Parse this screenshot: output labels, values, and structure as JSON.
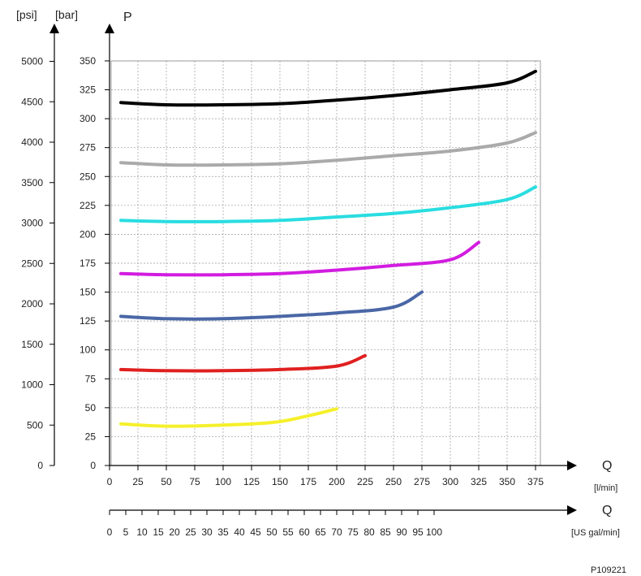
{
  "chart_data": {
    "type": "line",
    "title": "",
    "y_axis_label": "P",
    "y_units_left": "[psi]",
    "y_units_right": "[bar]",
    "x_axis_label": "Q",
    "x_units": "[l/min]",
    "x2_axis_label": "Q",
    "x2_units": "[US gal/min]",
    "reference_code": "P109221",
    "bar_ticks": [
      "0",
      "25",
      "50",
      "75",
      "100",
      "125",
      "150",
      "175",
      "200",
      "225",
      "250",
      "275",
      "300",
      "325",
      "350"
    ],
    "psi_ticks": [
      "0",
      "500",
      "1000",
      "1500",
      "2000",
      "2500",
      "3000",
      "3500",
      "4000",
      "4500",
      "5000"
    ],
    "lmin_ticks": [
      "0",
      "25",
      "50",
      "75",
      "100",
      "125",
      "150",
      "175",
      "200",
      "225",
      "250",
      "275",
      "300",
      "325",
      "350",
      "375"
    ],
    "gal_ticks": [
      "0",
      "5",
      "10",
      "15",
      "20",
      "25",
      "30",
      "35",
      "40",
      "45",
      "50",
      "55",
      "60",
      "65",
      "70",
      "75",
      "80",
      "85",
      "90",
      "95",
      "100"
    ],
    "ylim_bar": [
      0,
      350
    ],
    "grid": true,
    "series": [
      {
        "color": "#000000",
        "x": [
          10,
          50,
          100,
          150,
          200,
          250,
          300,
          350,
          375
        ],
        "y": [
          314,
          312,
          312,
          313,
          316,
          320,
          325,
          331,
          341
        ]
      },
      {
        "color": "#aaaaaa",
        "x": [
          10,
          50,
          100,
          150,
          200,
          250,
          300,
          350,
          375
        ],
        "y": [
          262,
          260,
          260,
          261,
          264,
          268,
          272,
          279,
          288
        ]
      },
      {
        "color": "#29dde0",
        "x": [
          10,
          50,
          100,
          150,
          200,
          250,
          300,
          350,
          375
        ],
        "y": [
          212,
          211,
          211,
          212,
          215,
          218,
          223,
          230,
          241
        ]
      },
      {
        "color": "#d21ce0",
        "x": [
          10,
          50,
          100,
          150,
          200,
          250,
          300,
          325
        ],
        "y": [
          166,
          165,
          165,
          166,
          169,
          173,
          178,
          193
        ]
      },
      {
        "color": "#4a67a6",
        "x": [
          10,
          50,
          100,
          150,
          200,
          250,
          275
        ],
        "y": [
          129,
          127,
          127,
          129,
          132,
          137,
          150
        ]
      },
      {
        "color": "#e02020",
        "x": [
          10,
          50,
          100,
          150,
          200,
          225
        ],
        "y": [
          83,
          82,
          82,
          83,
          86,
          95
        ]
      },
      {
        "color": "#f5f02a",
        "x": [
          10,
          50,
          100,
          150,
          200
        ],
        "y": [
          36,
          34,
          35,
          38,
          49
        ]
      }
    ]
  }
}
